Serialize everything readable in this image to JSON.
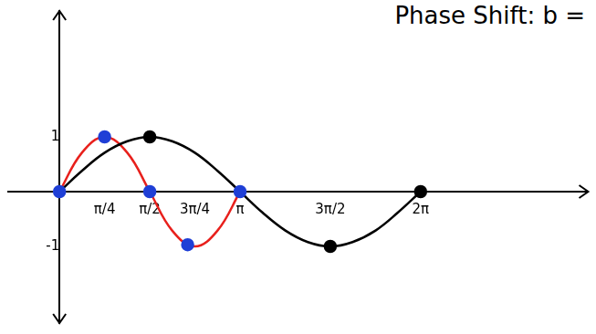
{
  "chart_data": {
    "type": "line",
    "title": "Phase Shift: b =",
    "xlim": [
      -0.9,
      9.2
    ],
    "ylim": [
      -2.4,
      3.3
    ],
    "xticks": [
      {
        "value": 0.785,
        "label": "π/4"
      },
      {
        "value": 1.571,
        "label": "π/2"
      },
      {
        "value": 2.356,
        "label": "3π/4"
      },
      {
        "value": 3.142,
        "label": "π"
      },
      {
        "value": 4.712,
        "label": "3π/2"
      },
      {
        "value": 6.283,
        "label": "2π"
      }
    ],
    "yticks": [
      -1,
      1
    ],
    "grid": false,
    "series": [
      {
        "type": "line",
        "color": "#000000",
        "marker": "none",
        "x": [
          0,
          0.39,
          0.785,
          1.18,
          1.571,
          1.96,
          2.356,
          2.75,
          3.142,
          3.53,
          3.93,
          4.32,
          4.712,
          5.1,
          5.5,
          5.89,
          6.283
        ],
        "values": [
          0,
          0.38,
          0.71,
          0.92,
          1,
          0.92,
          0.71,
          0.38,
          0,
          -0.38,
          -0.71,
          -0.92,
          -1,
          -0.92,
          -0.71,
          -0.38,
          0
        ]
      },
      {
        "type": "line",
        "color": "#e8201c",
        "marker": "none",
        "x": [
          0,
          0.39,
          0.785,
          1.18,
          1.571,
          1.96,
          2.356,
          2.75,
          3.142
        ],
        "values": [
          0,
          0.71,
          1,
          0.71,
          0,
          -0.71,
          -1,
          -0.71,
          0
        ]
      },
      {
        "type": "scatter",
        "color": "#000000",
        "marker": "circle",
        "x": [
          1.571,
          4.712,
          6.283
        ],
        "values": [
          1,
          -1,
          0
        ]
      },
      {
        "type": "scatter",
        "color": "#1f3fd6",
        "marker": "circle",
        "x": [
          0,
          0.785,
          1.571,
          2.23,
          3.142
        ],
        "values": [
          0,
          1,
          0,
          -0.97,
          0
        ]
      }
    ]
  }
}
